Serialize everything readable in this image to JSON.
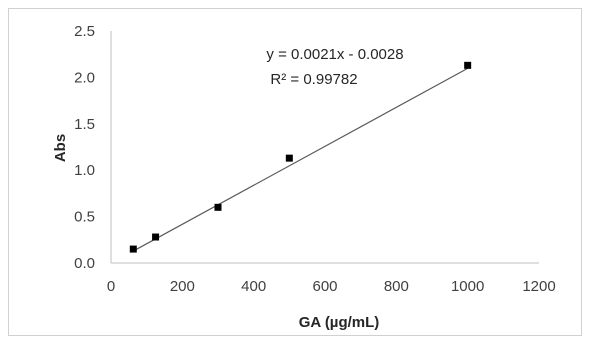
{
  "chart_data": {
    "type": "scatter",
    "xlabel": "GA (µg/mL)",
    "ylabel": "Abs",
    "xlim": [
      0,
      1200
    ],
    "ylim": [
      0,
      2.5
    ],
    "x_ticks": [
      "0",
      "200",
      "400",
      "600",
      "800",
      "1000",
      "1200"
    ],
    "y_ticks": [
      "0.0",
      "0.5",
      "1.0",
      "1.5",
      "2.0",
      "2.5"
    ],
    "points": [
      {
        "x": 62.5,
        "y": 0.15
      },
      {
        "x": 125,
        "y": 0.28
      },
      {
        "x": 300,
        "y": 0.6
      },
      {
        "x": 500,
        "y": 1.13
      },
      {
        "x": 1000,
        "y": 2.13
      }
    ],
    "trendline": {
      "slope": 0.0021,
      "intercept": -0.0028,
      "x_range": [
        62.5,
        1000
      ]
    },
    "equation_text": "y = 0.0021x - 0.0028",
    "r2_text": "R² = 0.99782",
    "grid": false,
    "legend": "none",
    "colors": {
      "marker": "#000000",
      "line": "#595959",
      "axis": "#bfbfbf"
    }
  }
}
